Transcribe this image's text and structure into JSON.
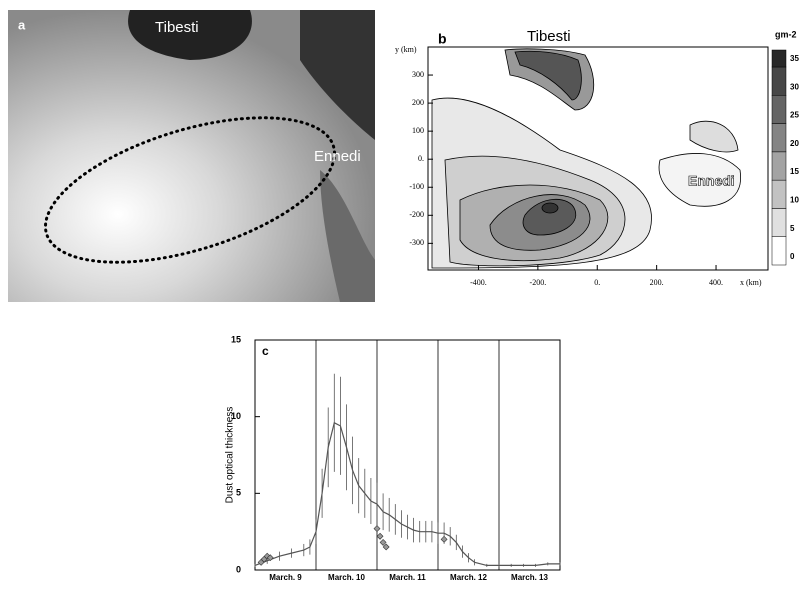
{
  "panel_a": {
    "letter": "a",
    "labels": [
      "Tibesti",
      "Ennedi"
    ]
  },
  "panel_b": {
    "letter": "b",
    "labels": [
      "Tibesti",
      "Ennedi"
    ],
    "ylabel": "y (km)",
    "xlabel": "x (km)",
    "xlim": [
      -570,
      575
    ],
    "ylim": [
      -395,
      400
    ],
    "xticks": [
      {
        "value": -400,
        "label": "-400."
      },
      {
        "value": -200,
        "label": "-200."
      },
      {
        "value": 0,
        "label": "0."
      },
      {
        "value": 200,
        "label": "200."
      },
      {
        "value": 400,
        "label": "400."
      }
    ],
    "yticks": [
      300,
      200,
      100,
      {
        "value": 0,
        "label": "0."
      },
      -100,
      -200,
      -300
    ],
    "colorbar": {
      "label": "gm-2",
      "clim": [
        0,
        38
      ],
      "ticks": [
        0,
        5,
        10,
        15,
        20,
        25,
        30,
        35
      ]
    }
  },
  "chart_data": {
    "type": "line",
    "letter": "c",
    "ylabel": "Dust optical thickness",
    "xlim": [
      9,
      14
    ],
    "ylim": [
      0,
      15
    ],
    "yticks": [
      0,
      5,
      10,
      15
    ],
    "xticks": [
      {
        "value": 9.5,
        "label": "March. 9"
      },
      {
        "value": 10.5,
        "label": "March. 10"
      },
      {
        "value": 11.5,
        "label": "March. 11"
      },
      {
        "value": 12.5,
        "label": "March. 12"
      },
      {
        "value": 13.5,
        "label": "March. 13"
      }
    ],
    "day_lines": [
      10,
      11,
      12,
      13
    ],
    "x": [
      9.0,
      9.2,
      9.4,
      9.6,
      9.8,
      9.9,
      10.0,
      10.1,
      10.2,
      10.3,
      10.4,
      10.5,
      10.6,
      10.7,
      10.8,
      10.9,
      11.0,
      11.1,
      11.2,
      11.3,
      11.4,
      11.5,
      11.6,
      11.7,
      11.8,
      11.9,
      12.0,
      12.1,
      12.2,
      12.3,
      12.4,
      12.5,
      12.6,
      12.8,
      13.0,
      13.2,
      13.4,
      13.6,
      13.8,
      14.0
    ],
    "series": [
      {
        "color": "#555555",
        "values": [
          0.3,
          0.6,
          0.9,
          1.1,
          1.3,
          1.5,
          2.5,
          5,
          8,
          9.6,
          9.4,
          8,
          6.5,
          5.5,
          5,
          4.5,
          4.3,
          3.8,
          3.6,
          3.3,
          3.0,
          2.8,
          2.6,
          2.5,
          2.5,
          2.5,
          2.4,
          2.4,
          2.2,
          1.8,
          1.2,
          0.8,
          0.5,
          0.3,
          0.3,
          0.3,
          0.3,
          0.3,
          0.4,
          0.4
        ],
        "errors": [
          0.1,
          0.2,
          0.3,
          0.3,
          0.4,
          0.5,
          0.8,
          1.6,
          2.6,
          3.2,
          3.2,
          2.8,
          2.2,
          1.8,
          1.6,
          1.5,
          1.4,
          1.2,
          1.1,
          1.0,
          0.9,
          0.8,
          0.8,
          0.7,
          0.7,
          0.7,
          0.7,
          0.7,
          0.6,
          0.5,
          0.4,
          0.3,
          0.2,
          0.1,
          0.1,
          0.1,
          0.1,
          0.1,
          0.1,
          0.1
        ]
      }
    ],
    "observations": {
      "color": "#333333",
      "x": [
        9.1,
        9.15,
        9.2,
        9.25,
        11.0,
        11.05,
        11.1,
        11.15,
        12.1
      ],
      "values": [
        0.5,
        0.7,
        0.9,
        0.8,
        2.7,
        2.2,
        1.8,
        1.5,
        2.0
      ]
    }
  }
}
